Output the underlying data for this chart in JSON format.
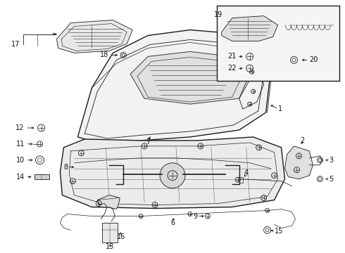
{
  "bg_color": "#ffffff",
  "line_color": "#1a1a1a",
  "text_color": "#111111",
  "figsize": [
    4.9,
    3.6
  ],
  "dpi": 100,
  "lw_main": 1.0,
  "lw_thin": 0.6,
  "fs": 7.0
}
